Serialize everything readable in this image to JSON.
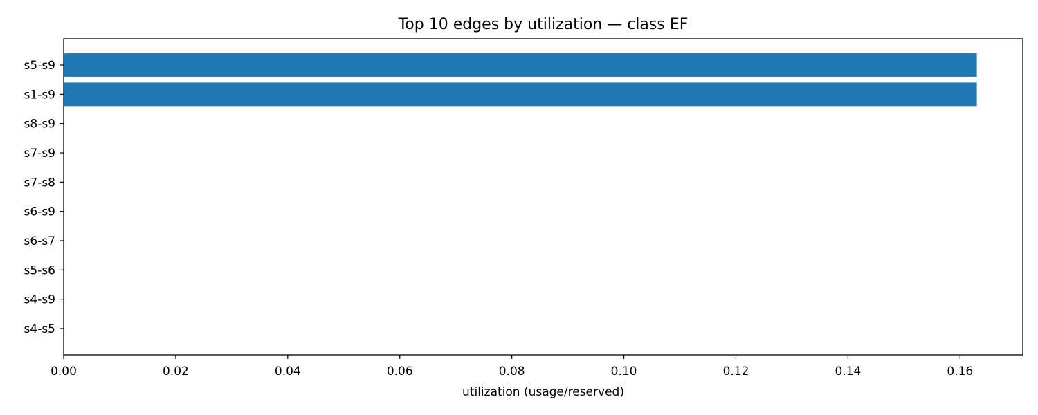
{
  "chart_data": {
    "type": "bar",
    "orientation": "horizontal",
    "title": "Top 10 edges by utilization — class EF",
    "xlabel": "utilization (usage/reserved)",
    "ylabel": "",
    "categories": [
      "s5-s9",
      "s1-s9",
      "s8-s9",
      "s7-s9",
      "s7-s8",
      "s6-s9",
      "s6-s7",
      "s5-s6",
      "s4-s9",
      "s4-s5"
    ],
    "values": [
      0.163,
      0.163,
      0,
      0,
      0,
      0,
      0,
      0,
      0,
      0
    ],
    "xlim": [
      0,
      0.1712
    ],
    "xticks": [
      "0.00",
      "0.02",
      "0.04",
      "0.06",
      "0.08",
      "0.10",
      "0.12",
      "0.14",
      "0.16"
    ],
    "bar_color": "#1f77b4",
    "grid": false,
    "legend": "none"
  }
}
